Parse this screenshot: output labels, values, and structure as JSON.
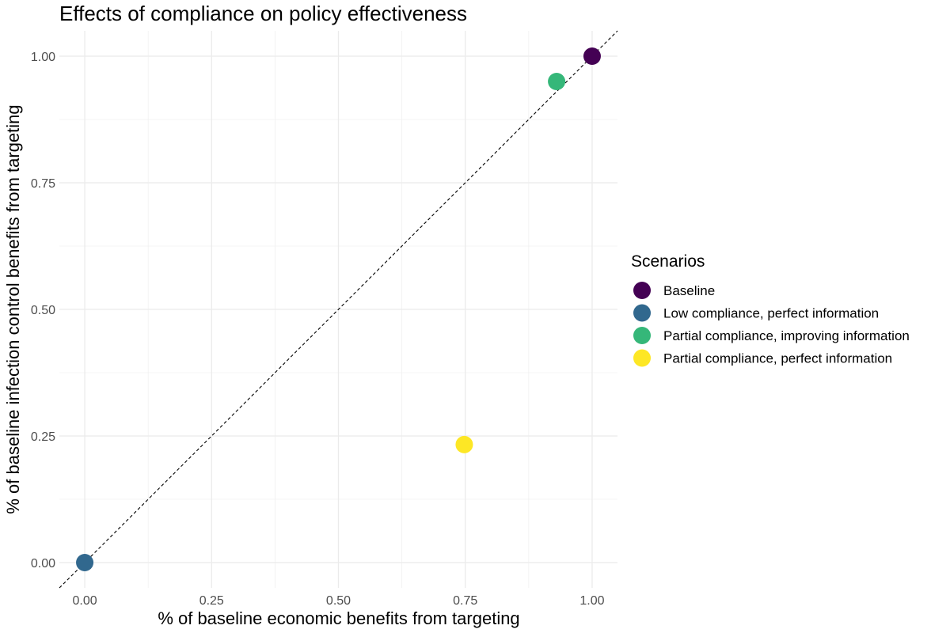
{
  "chart_data": {
    "type": "scatter",
    "title": "Effects of compliance on policy effectiveness",
    "xlabel": "% of baseline economic benefits from targeting",
    "ylabel": "% of baseline infection control benefits from targeting",
    "xlim": [
      -0.05,
      1.05
    ],
    "ylim": [
      -0.05,
      1.05
    ],
    "x_ticks": [
      "0.00",
      "0.25",
      "0.50",
      "0.75",
      "1.00"
    ],
    "y_ticks": [
      "0.00",
      "0.25",
      "0.50",
      "0.75",
      "1.00"
    ],
    "grid": true,
    "reference_line": {
      "type": "identity",
      "style": "dashed",
      "color": "#000000"
    },
    "legend": {
      "title": "Scenarios",
      "position": "right",
      "entries": [
        {
          "label": "Baseline",
          "color": "#440154"
        },
        {
          "label": "Low compliance, perfect information",
          "color": "#31688e"
        },
        {
          "label": "Partial compliance, improving information",
          "color": "#35b779"
        },
        {
          "label": "Partial compliance, perfect information",
          "color": "#fde725"
        }
      ]
    },
    "series": [
      {
        "name": "Baseline",
        "color": "#440154",
        "x": [
          1.0
        ],
        "y": [
          1.0
        ]
      },
      {
        "name": "Low compliance, perfect information",
        "color": "#31688e",
        "x": [
          0.0
        ],
        "y": [
          0.0
        ]
      },
      {
        "name": "Partial compliance, improving information",
        "color": "#35b779",
        "x": [
          0.93
        ],
        "y": [
          0.95
        ]
      },
      {
        "name": "Partial compliance, perfect information",
        "color": "#fde725",
        "x": [
          0.748
        ],
        "y": [
          0.233
        ]
      }
    ]
  }
}
